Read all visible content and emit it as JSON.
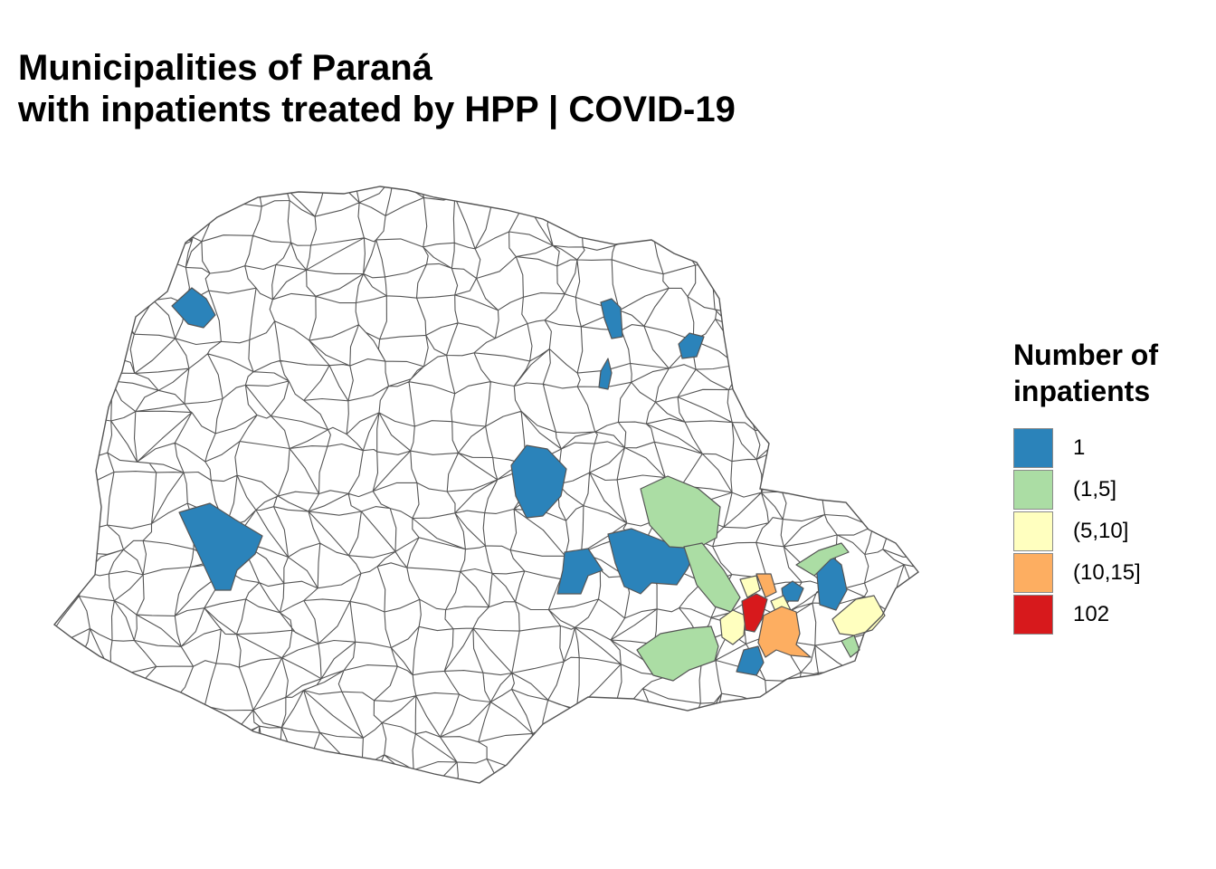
{
  "title": {
    "line1": "Municipalities of Paraná",
    "line2": "with inpatients treated by HPP | COVID-19"
  },
  "legend": {
    "title_line1": "Number of",
    "title_line2": "inpatients",
    "items": [
      {
        "label": "1",
        "color": "#2b83ba"
      },
      {
        "label": "(1,5]",
        "color": "#abdda4"
      },
      {
        "label": "(5,10]",
        "color": "#ffffbf"
      },
      {
        "label": "(10,15]",
        "color": "#fdae61"
      },
      {
        "label": "102",
        "color": "#d7191c"
      }
    ]
  },
  "map": {
    "border_color": "#555555",
    "default_fill": "#ffffff",
    "highlighted_municipalities": [
      {
        "class": "1"
      },
      {
        "class": "1"
      },
      {
        "class": "1"
      },
      {
        "class": "1"
      },
      {
        "class": "1"
      },
      {
        "class": "1"
      },
      {
        "class": "1"
      },
      {
        "class": "1"
      },
      {
        "class": "1"
      },
      {
        "class": "1"
      },
      {
        "class": "1"
      },
      {
        "class": "(1,5]"
      },
      {
        "class": "(1,5]"
      },
      {
        "class": "(1,5]"
      },
      {
        "class": "(1,5]"
      },
      {
        "class": "(1,5]"
      },
      {
        "class": "(5,10]"
      },
      {
        "class": "(5,10]"
      },
      {
        "class": "(5,10]"
      },
      {
        "class": "(5,10]"
      },
      {
        "class": "(10,15]"
      },
      {
        "class": "(10,15]"
      },
      {
        "class": "102"
      }
    ]
  }
}
